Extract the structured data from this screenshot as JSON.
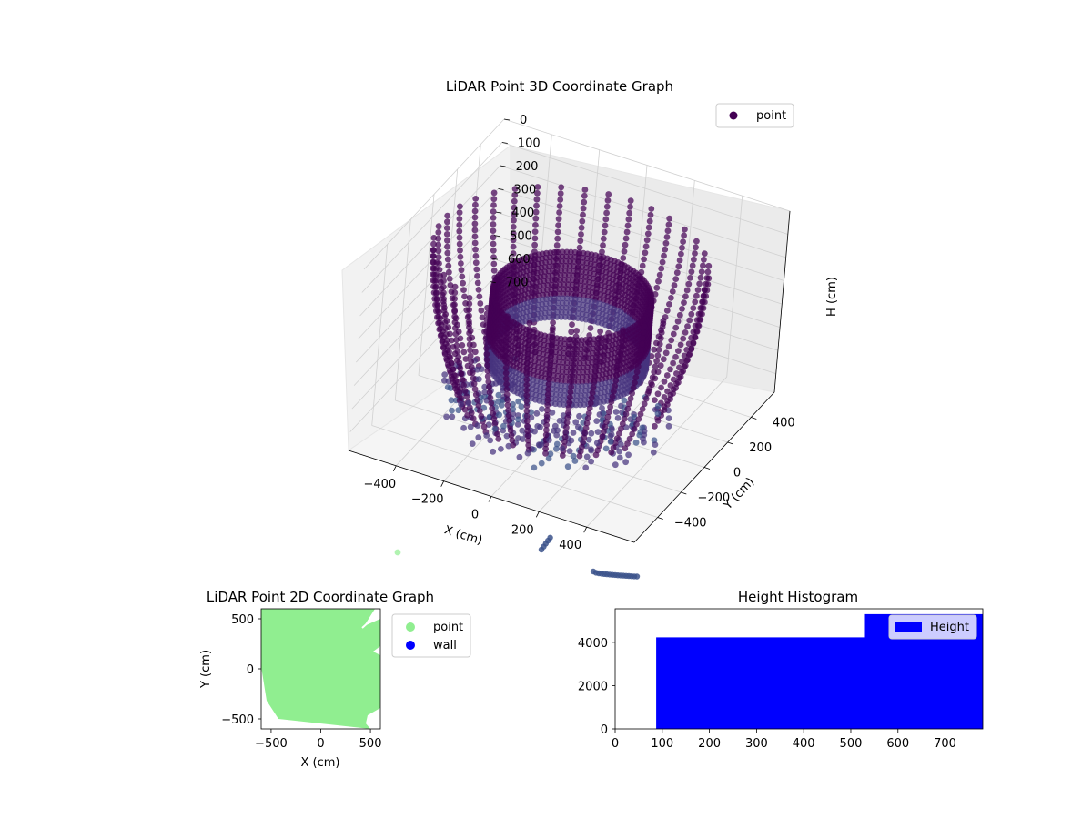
{
  "chart_data": [
    {
      "type": "scatter",
      "title": "LiDAR Point 3D Coordinate Graph",
      "projection": "3d",
      "xlabel": "X (cm)",
      "ylabel": "Y (cm)",
      "zlabel": "H (cm)",
      "xticks": [
        -400,
        -200,
        0,
        200,
        400
      ],
      "yticks": [
        -400,
        -200,
        0,
        200,
        400
      ],
      "zticks": [
        0,
        100,
        200,
        300,
        400,
        500,
        600,
        700
      ],
      "xlim": [
        -600,
        600
      ],
      "ylim": [
        -600,
        600
      ],
      "zlim": [
        780,
        0
      ],
      "z_inverted": true,
      "grid": true,
      "legend": "top-right",
      "series": [
        {
          "name": "point",
          "color": "#440154",
          "colormap": "viridis",
          "marker": "circle"
        }
      ]
    },
    {
      "type": "scatter",
      "title": "LiDAR Point 2D Coordinate Graph",
      "xlabel": "X (cm)",
      "ylabel": "Y (cm)",
      "xticks": [
        -500,
        0,
        500
      ],
      "yticks": [
        -500,
        0,
        500
      ],
      "xlim": [
        -600,
        600
      ],
      "ylim": [
        -600,
        600
      ],
      "legend": "outside-right",
      "series": [
        {
          "name": "point",
          "color": "#90ee90",
          "extent": "filled disk radius ~600 cm, clipped by axes"
        },
        {
          "name": "wall",
          "color": "#0000ff",
          "extent": "none visible"
        }
      ]
    },
    {
      "type": "bar",
      "subtype": "histogram",
      "title": "Height Histogram",
      "xticks": [
        0,
        100,
        200,
        300,
        400,
        500,
        600,
        700
      ],
      "yticks": [
        0,
        2000,
        4000
      ],
      "xlim": [
        0,
        780
      ],
      "ylim": [
        0,
        5550
      ],
      "legend": "top-right",
      "series": [
        {
          "name": "Height",
          "color": "#0000ff"
        }
      ],
      "bins": [
        {
          "x0": 87,
          "x1": 530,
          "count": 4230
        },
        {
          "x0": 530,
          "x1": 780,
          "count": 5300
        }
      ]
    }
  ]
}
